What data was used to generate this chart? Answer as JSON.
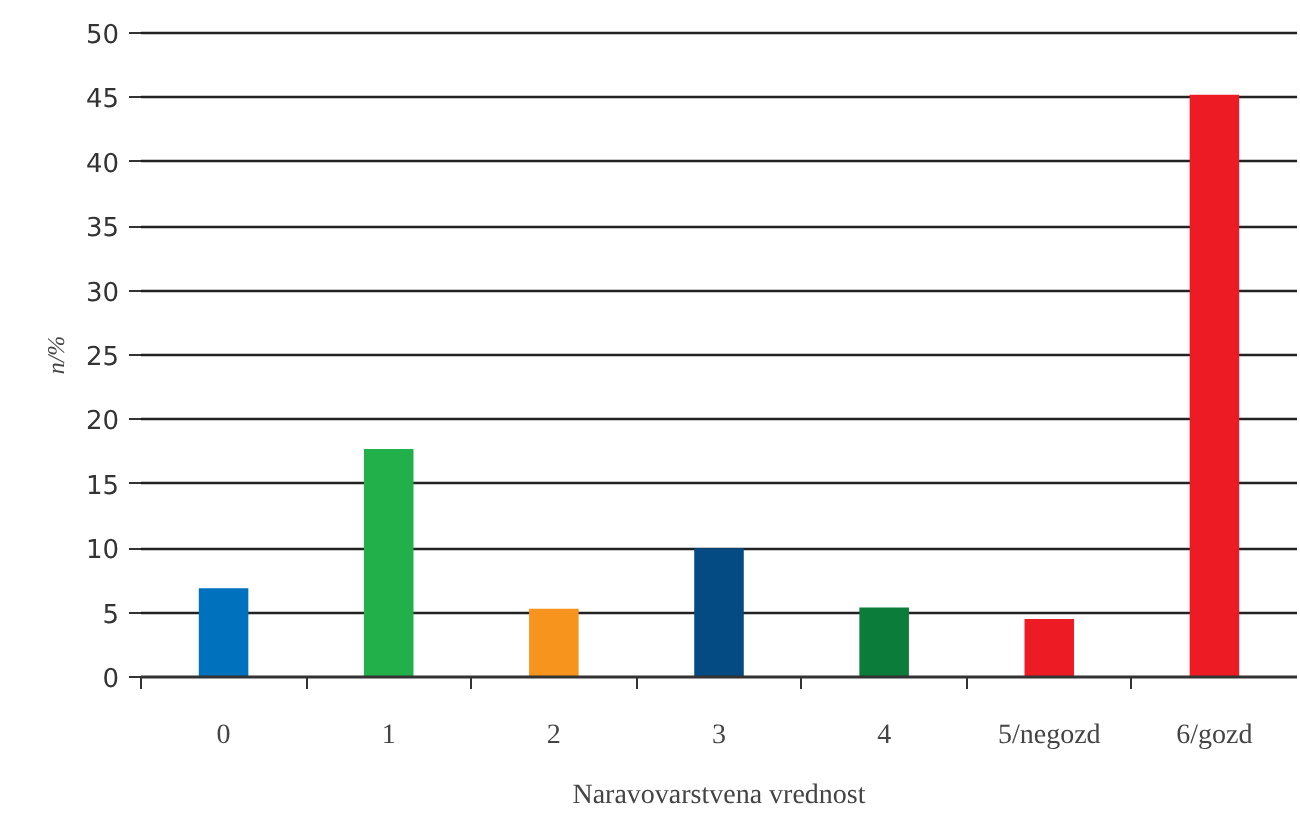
{
  "chart_data": {
    "type": "bar",
    "xlabel": "Naravovarstvena vrednost",
    "ylabel": "n/%",
    "categories": [
      "0",
      "1",
      "2",
      "3",
      "4",
      "5/negozd",
      "6/gozd"
    ],
    "values": [
      6.9,
      17.7,
      5.3,
      10.0,
      5.4,
      4.5,
      45.2
    ],
    "colors": [
      "#0071bc",
      "#22b04b",
      "#f7941d",
      "#034b82",
      "#0b7c3a",
      "#ed1c24",
      "#ed1c24"
    ],
    "ylim": [
      0,
      50
    ],
    "yticks": [
      0,
      5,
      10,
      15,
      20,
      25,
      30,
      35,
      40,
      45,
      50
    ],
    "grid": "y"
  }
}
